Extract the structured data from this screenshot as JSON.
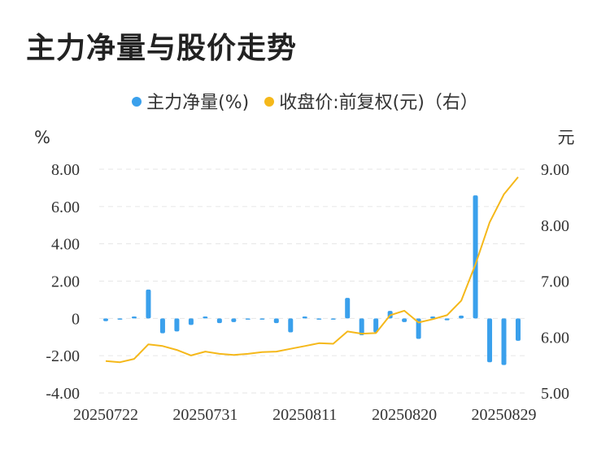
{
  "title": "主力净量与股价走势",
  "colors": {
    "bar": "#3aa0ec",
    "line": "#f5b81a",
    "grid": "#e6e6e6"
  },
  "chart_data": {
    "type": "bar+line",
    "title": "主力净量与股价走势",
    "legend": [
      {
        "name": "主力净量(%)",
        "color": "#3aa0ec"
      },
      {
        "name": "收盘价:前复权(元)（右）",
        "color": "#f5b81a"
      }
    ],
    "left_unit": "%",
    "right_unit": "元",
    "left_ticks": [
      "8.00",
      "6.00",
      "4.00",
      "2.00",
      "0",
      "-2.00",
      "-4.00"
    ],
    "right_ticks": [
      "9.00",
      "8.00",
      "7.00",
      "6.00",
      "5.00"
    ],
    "ylim_left": [
      -4,
      8
    ],
    "ylim_right": [
      5,
      9
    ],
    "x_tick_labels": [
      "20250722",
      "20250731",
      "20250811",
      "20250820",
      "20250829"
    ],
    "x_tick_indices": [
      0,
      7,
      14,
      21,
      28
    ],
    "series": [
      {
        "name": "主力净量(%)",
        "axis": "left",
        "values": [
          -0.15,
          -0.05,
          0.1,
          1.55,
          -0.8,
          -0.7,
          -0.35,
          0.1,
          -0.25,
          -0.2,
          -0.05,
          -0.05,
          -0.25,
          -0.75,
          0.1,
          -0.05,
          -0.05,
          1.1,
          -0.9,
          -0.75,
          0.4,
          -0.2,
          -1.1,
          0.1,
          -0.1,
          0.15,
          6.6,
          -2.35,
          -2.5,
          -1.2
        ]
      },
      {
        "name": "收盘价:前复权(元)（右）",
        "axis": "right",
        "values": [
          5.57,
          5.55,
          5.61,
          5.87,
          5.84,
          5.77,
          5.67,
          5.74,
          5.7,
          5.68,
          5.7,
          5.73,
          5.74,
          5.79,
          5.84,
          5.89,
          5.88,
          6.1,
          6.06,
          6.07,
          6.39,
          6.47,
          6.26,
          6.32,
          6.39,
          6.65,
          7.3,
          8.05,
          8.55,
          8.86
        ]
      }
    ]
  }
}
